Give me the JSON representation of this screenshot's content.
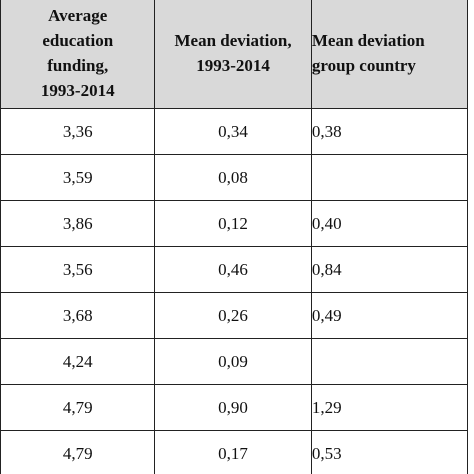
{
  "table": {
    "headers": {
      "col1": [
        "Average",
        "education",
        "funding,",
        "1993-2014"
      ],
      "col2": [
        "Mean deviation,",
        "1993-2014"
      ],
      "col3": [
        "Mean deviation",
        "group country"
      ]
    },
    "rows": [
      {
        "avg": "3,36",
        "dev": "0,34",
        "group": "0,38"
      },
      {
        "avg": "3,59",
        "dev": "0,08",
        "group": ""
      },
      {
        "avg": "3,86",
        "dev": "0,12",
        "group": "0,40"
      },
      {
        "avg": "3,56",
        "dev": "0,46",
        "group": "0,84"
      },
      {
        "avg": "3,68",
        "dev": "0,26",
        "group": "0,49"
      },
      {
        "avg": "4,24",
        "dev": "0,09",
        "group": ""
      },
      {
        "avg": "4,79",
        "dev": "0,90",
        "group": "1,29"
      },
      {
        "avg": "4,79",
        "dev": "0,17",
        "group": "0,53"
      }
    ]
  }
}
